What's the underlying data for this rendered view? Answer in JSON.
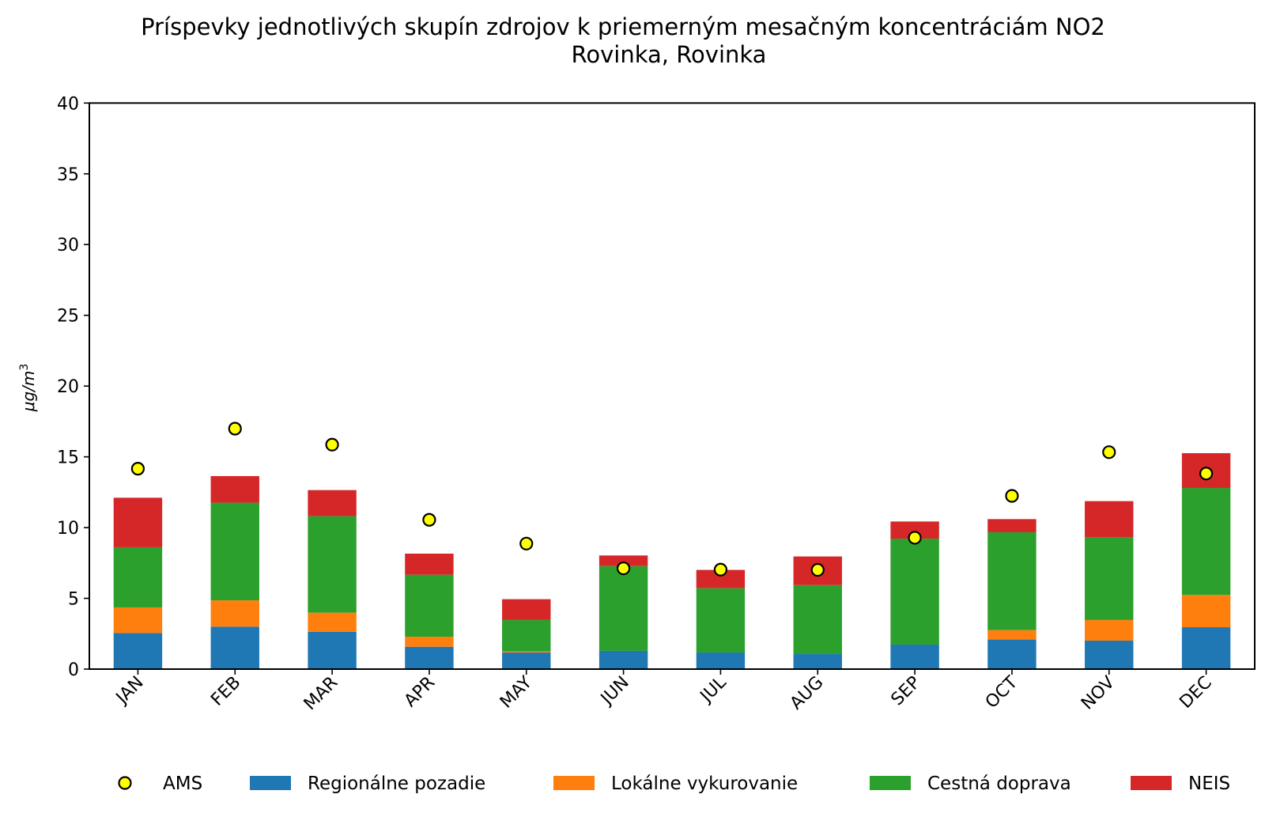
{
  "chart_data": {
    "type": "bar",
    "stacked": true,
    "title": "Príspevky jednotlivých skupín zdrojov k priemerným mesačným koncentráciám NO2",
    "subtitle": "Rovinka, Rovinka",
    "xlabel": "",
    "ylabel": "μg/m3",
    "ylabel_base": "μg/m",
    "ylabel_sup": "3",
    "ylim": [
      0,
      40
    ],
    "yticks": [
      0,
      5,
      10,
      15,
      20,
      25,
      30,
      35,
      40
    ],
    "grid": false,
    "legend_position": "bottom",
    "categories": [
      "JAN",
      "FEB",
      "MAR",
      "APR",
      "MAY",
      "JUN",
      "JUL",
      "AUG",
      "SEP",
      "OCT",
      "NOV",
      "DEC"
    ],
    "series": [
      {
        "name": "Regionálne pozadie",
        "color": "#1f77b4",
        "values": [
          2.55,
          3.0,
          2.63,
          1.58,
          1.17,
          1.29,
          1.17,
          1.06,
          1.73,
          2.09,
          2.01,
          2.96
        ]
      },
      {
        "name": "Lokálne vykurovanie",
        "color": "#ff7f0e",
        "values": [
          1.81,
          1.86,
          1.36,
          0.71,
          0.08,
          0.0,
          0.0,
          0.0,
          0.0,
          0.67,
          1.46,
          2.28
        ]
      },
      {
        "name": "Cestná doprava",
        "color": "#2ca02c",
        "values": [
          4.25,
          6.9,
          6.82,
          4.38,
          2.22,
          5.99,
          4.55,
          4.88,
          7.49,
          6.91,
          5.86,
          7.56
        ]
      },
      {
        "name": "NEIS",
        "color": "#d62728",
        "values": [
          3.5,
          1.88,
          1.84,
          1.49,
          1.47,
          0.75,
          1.29,
          2.02,
          1.21,
          0.93,
          2.54,
          2.46
        ]
      }
    ],
    "markers": {
      "name": "AMS",
      "color": "#ffff00",
      "edge_color": "#000000",
      "values": [
        14.16,
        16.99,
        15.86,
        10.55,
        8.87,
        7.12,
        7.03,
        7.01,
        9.28,
        12.24,
        15.33,
        13.82
      ]
    },
    "legend": [
      "AMS",
      "Regionálne pozadie",
      "Lokálne vykurovanie",
      "Cestná doprava",
      "NEIS"
    ]
  }
}
